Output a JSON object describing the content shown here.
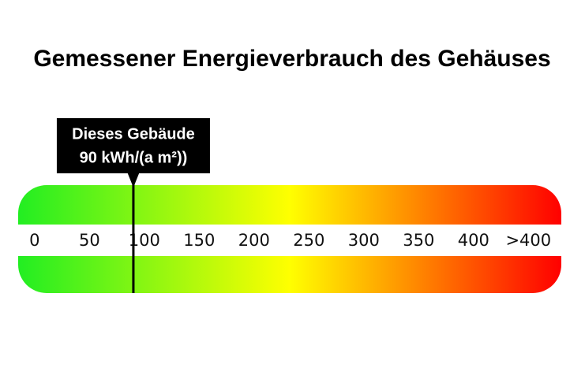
{
  "chart_data": {
    "type": "scale",
    "title": "Gemessener Energieverbrauch des Gehäuses",
    "marker_label": [
      "Dieses Gebäude",
      "90 kWh/(a m²))"
    ],
    "value": 90,
    "xlim": [
      -15,
      480
    ],
    "xticks": [
      0,
      50,
      100,
      150,
      200,
      250,
      300,
      350,
      400,
      {
        "value": 450,
        "label": ">400"
      }
    ],
    "colors": [
      "#22ee22",
      "#ffff00",
      "#ff0000"
    ]
  }
}
